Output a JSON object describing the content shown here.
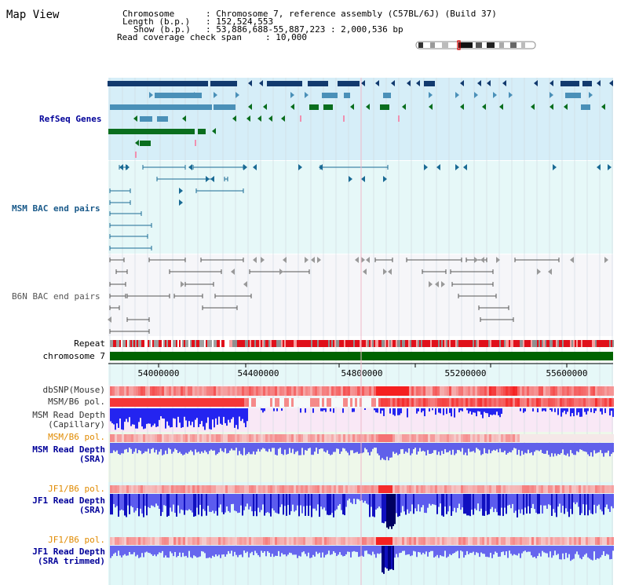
{
  "title": "Map View",
  "header": {
    "chromosome_key": "Chromosome",
    "chromosome_val": ": Chromosome 7, reference assembly (C57BL/6J) (Build 37)",
    "length_key": "Length (b.p.)",
    "length_val": ": 152,524,553",
    "show_key": "Show (b.p.)",
    "show_val": ": 53,886,688-55,887,223 : 2,000,536 bp",
    "coverage_key": "Read coverage check span",
    "coverage_val": ": 10,000"
  },
  "tracks": {
    "refseq": "RefSeq Genes",
    "msm_bac": "MSM BAC end pairs",
    "b6n_bac": "B6N BAC end pairs",
    "repeat": "Repeat",
    "chromosome": "chromosome 7",
    "dbsnp": "dbSNP(Mouse)",
    "msm_b6_pol_1": "MSM/B6 pol.",
    "msm_depth_cap_1": "MSM Read Depth",
    "msm_depth_cap_2": "(Capillary)",
    "msm_b6_pol_2": "MSM/B6 pol.",
    "msm_depth_sra_1": "MSM Read Depth",
    "msm_depth_sra_2": "(SRA)",
    "jf1_b6_pol_1": "JF1/B6 pol.",
    "jf1_depth_sra_1": "JF1 Read Depth",
    "jf1_depth_sra_2": "(SRA)",
    "jf1_b6_pol_2": "JF1/B6 pol.",
    "jf1_depth_trim_1": "JF1 Read Depth",
    "jf1_depth_trim_2": "(SRA trimmed)"
  },
  "axis": {
    "ticks": [
      "54000000",
      "54400000",
      "54800000",
      "55200000",
      "55600000"
    ]
  },
  "colors": {
    "refseq_bg": "#d6eef8",
    "bac_bg": "#e8f8f8",
    "b6n_bg": "#f4f4f8",
    "dark_blue": "#123a6e",
    "mid_blue": "#4a90b8",
    "green": "#0a6e1e",
    "chrom_green": "#006400",
    "red": "#e8000a",
    "depth_blue": "#2020e0",
    "label_blue": "#000099",
    "label_orange": "#e08a00"
  }
}
